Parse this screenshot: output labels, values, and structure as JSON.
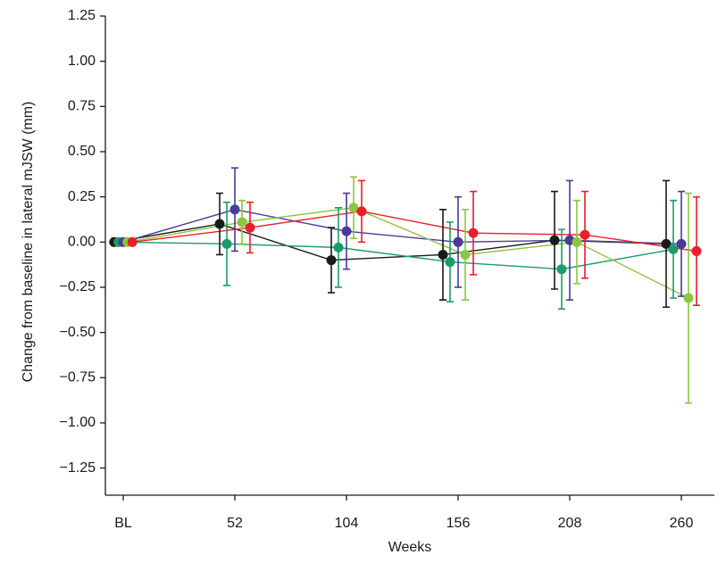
{
  "chart_data": {
    "type": "errorbar-line",
    "x_label": "Weeks",
    "y_label": "Change from baseline in lateral mJSW (mm)",
    "categories": [
      "BL",
      "52",
      "104",
      "156",
      "208",
      "260"
    ],
    "ylim": [
      -1.4,
      1.25
    ],
    "yticks": [
      1.25,
      {
        "value": 1,
        "label": "1.00"
      },
      0.75,
      {
        "value": 0.5,
        "label": "0.50"
      },
      0.25,
      {
        "value": 0,
        "label": "0.00"
      },
      {
        "value": -0.25,
        "label": "−0.25"
      },
      {
        "value": -0.5,
        "label": "−0.50"
      },
      {
        "value": -0.75,
        "label": "−0.75"
      },
      {
        "value": -1,
        "label": "−1.00"
      },
      {
        "value": -1.25,
        "label": "−1.25"
      }
    ],
    "series": [
      {
        "color": "#1a1a1a",
        "values": [
          0,
          0.1,
          -0.1,
          -0.07,
          0.01,
          -0.01
        ],
        "errors": [
          null,
          0.17,
          0.18,
          0.25,
          0.27,
          0.35
        ]
      },
      {
        "color": "#1a9c6a",
        "values": [
          0,
          -0.01,
          -0.03,
          -0.11,
          -0.15,
          -0.04
        ],
        "errors": [
          null,
          0.23,
          0.22,
          0.22,
          0.22,
          0.27
        ]
      },
      {
        "color": "#4b3a96",
        "values": [
          0,
          0.18,
          0.06,
          0.0,
          0.01,
          -0.01
        ],
        "errors": [
          null,
          0.23,
          0.21,
          0.25,
          0.33,
          0.29
        ]
      },
      {
        "color": "#8cc63f",
        "values": [
          0,
          0.11,
          0.19,
          -0.07,
          0.0,
          -0.31
        ],
        "errors": [
          null,
          0.12,
          0.17,
          0.25,
          0.23,
          0.58
        ]
      },
      {
        "color": "#e8202a",
        "values": [
          0,
          0.08,
          0.17,
          0.05,
          0.04,
          -0.05
        ],
        "errors": [
          null,
          0.14,
          0.17,
          0.23,
          0.24,
          0.3
        ]
      }
    ]
  }
}
